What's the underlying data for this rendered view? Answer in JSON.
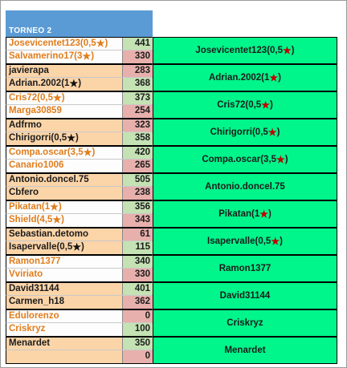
{
  "sheet": {
    "title": "TORNEO  2",
    "colors": {
      "header": "#5b9bd5",
      "winner": "#00f58a",
      "orange_text": "#e07d1c",
      "peach": "#fbd4a8",
      "green_score": "#c4e2b3",
      "red_score": "#e8b0ac",
      "star_red": "#c00000"
    }
  },
  "matches": [
    {
      "p1": {
        "name": "Josevicentet123(0,5",
        "star": true,
        "suffix": ")",
        "score": "441"
      },
      "p2": {
        "name": "Salvamerino17(3",
        "star": true,
        "suffix": ")",
        "score": "330"
      },
      "winner": {
        "name": "Josevicentet123(0,5",
        "star": true,
        "suffix": ")"
      }
    },
    {
      "p1": {
        "name": "javierapa",
        "star": false,
        "suffix": "",
        "score": "283"
      },
      "p2": {
        "name": "Adrian.2002(1",
        "star": true,
        "suffix": ")",
        "score": "368"
      },
      "winner": {
        "name": "Adrian.2002(1",
        "star": true,
        "suffix": ")"
      }
    },
    {
      "p1": {
        "name": "Cris72(0,5",
        "star": true,
        "suffix": ")",
        "score": "373"
      },
      "p2": {
        "name": "Marga30859",
        "star": false,
        "suffix": "",
        "score": "254"
      },
      "winner": {
        "name": "Cris72(0,5",
        "star": true,
        "suffix": ")"
      }
    },
    {
      "p1": {
        "name": "Adfrmo",
        "star": false,
        "suffix": "",
        "score": "323"
      },
      "p2": {
        "name": "Chirigorri(0,5",
        "star": true,
        "suffix": ")",
        "score": "358"
      },
      "winner": {
        "name": "Chirigorri(0,5",
        "star": true,
        "suffix": ")"
      }
    },
    {
      "p1": {
        "name": "Compa.oscar(3,5",
        "star": true,
        "suffix": ")",
        "score": "420"
      },
      "p2": {
        "name": "Canario1006",
        "star": false,
        "suffix": "",
        "score": "265"
      },
      "winner": {
        "name": "Compa.oscar(3,5",
        "star": true,
        "suffix": ")"
      }
    },
    {
      "p1": {
        "name": "Antonio.doncel.75",
        "star": false,
        "suffix": "",
        "score": "505"
      },
      "p2": {
        "name": "Cbfero",
        "star": false,
        "suffix": "",
        "score": "238"
      },
      "winner": {
        "name": "Antonio.doncel.75",
        "star": false,
        "suffix": ""
      }
    },
    {
      "p1": {
        "name": "Pikatan(1",
        "star": true,
        "suffix": ")",
        "score": "356"
      },
      "p2": {
        "name": "Shield(4,5",
        "star": true,
        "suffix": ")",
        "score": "343"
      },
      "winner": {
        "name": "Pikatan(1",
        "star": true,
        "suffix": ")"
      }
    },
    {
      "p1": {
        "name": "Sebastian.detomo",
        "star": false,
        "suffix": "",
        "score": "61"
      },
      "p2": {
        "name": "Isapervalle(0,5",
        "star": true,
        "suffix": ")",
        "score": "115"
      },
      "winner": {
        "name": "Isapervalle(0,5",
        "star": true,
        "suffix": ")"
      }
    },
    {
      "p1": {
        "name": "Ramon1377",
        "star": false,
        "suffix": "",
        "score": "340"
      },
      "p2": {
        "name": "Vviriato",
        "star": false,
        "suffix": "",
        "score": "330"
      },
      "winner": {
        "name": "Ramon1377",
        "star": false,
        "suffix": ""
      }
    },
    {
      "p1": {
        "name": "David31144",
        "star": false,
        "suffix": "",
        "score": "401"
      },
      "p2": {
        "name": "Carmen_h18",
        "star": false,
        "suffix": "",
        "score": "362"
      },
      "winner": {
        "name": "David31144",
        "star": false,
        "suffix": ""
      }
    },
    {
      "p1": {
        "name": "Edulorenzo",
        "star": false,
        "suffix": "",
        "score": "0"
      },
      "p2": {
        "name": "Criskryz",
        "star": false,
        "suffix": "",
        "score": "100"
      },
      "winner": {
        "name": "Criskryz",
        "star": false,
        "suffix": ""
      }
    },
    {
      "p1": {
        "name": "Menardet",
        "star": false,
        "suffix": "",
        "score": "350"
      },
      "p2": {
        "name": "",
        "star": false,
        "suffix": "",
        "score": "0"
      },
      "winner": {
        "name": "Menardet",
        "star": false,
        "suffix": ""
      }
    }
  ],
  "styles": [
    {
      "p1": "orange",
      "p1star": "orange",
      "p2": "orange",
      "p2star": "orange",
      "s1": "green-s",
      "s2": "red-s"
    },
    {
      "p1": "black",
      "p1star": "",
      "p2": "black",
      "p2star": "black",
      "s1": "red-s",
      "s2": "green-s"
    },
    {
      "p1": "orange",
      "p1star": "orange",
      "p2": "orange",
      "p2star": "",
      "s1": "green-s",
      "s2": "red-s"
    },
    {
      "p1": "black",
      "p1star": "",
      "p2": "black",
      "p2star": "black",
      "s1": "red-s",
      "s2": "green-s"
    },
    {
      "p1": "orange",
      "p1star": "orange",
      "p2": "orange",
      "p2star": "",
      "s1": "green-s",
      "s2": "red-s"
    },
    {
      "p1": "black",
      "p1star": "",
      "p2": "black",
      "p2star": "",
      "s1": "green-s",
      "s2": "red-s"
    },
    {
      "p1": "orange",
      "p1star": "orange",
      "p2": "orange",
      "p2star": "orange",
      "s1": "green-s",
      "s2": "red-s"
    },
    {
      "p1": "black",
      "p1star": "",
      "p2": "black",
      "p2star": "black",
      "s1": "red-s",
      "s2": "green-s"
    },
    {
      "p1": "orange",
      "p1star": "",
      "p2": "orange",
      "p2star": "",
      "s1": "green-s",
      "s2": "red-s"
    },
    {
      "p1": "black",
      "p1star": "",
      "p2": "black",
      "p2star": "",
      "s1": "green-s",
      "s2": "red-s"
    },
    {
      "p1": "orange",
      "p1star": "",
      "p2": "orange",
      "p2star": "",
      "s1": "red-s",
      "s2": "green-s"
    },
    {
      "p1": "black",
      "p1star": "",
      "p2": "black",
      "p2star": "",
      "s1": "green-s",
      "s2": "red-s"
    }
  ]
}
